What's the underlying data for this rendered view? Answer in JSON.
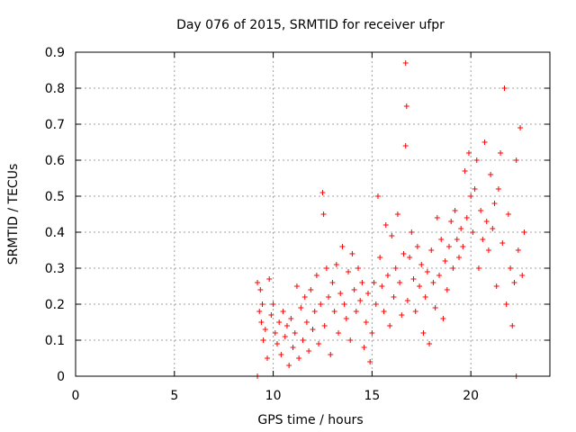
{
  "chart_data": {
    "type": "scatter",
    "title": "Day 076 of 2015, SRMTID for receiver ufpr",
    "xlabel": "GPS time / hours",
    "ylabel": "SRMTID / TECUs",
    "xlim": [
      0,
      24
    ],
    "ylim": [
      0,
      0.9
    ],
    "xticks": [
      0,
      5,
      10,
      15,
      20
    ],
    "yticks": [
      0,
      0.1,
      0.2,
      0.3,
      0.4,
      0.5,
      0.6,
      0.7,
      0.8,
      0.9
    ],
    "grid": true,
    "marker": "+",
    "point_color": "#ff0000",
    "series": [
      {
        "name": "SRMTID",
        "x": [
          9.2,
          9.3,
          9.35,
          9.4,
          9.45,
          9.5,
          9.6,
          9.7,
          9.8,
          9.9,
          10.0,
          10.1,
          10.2,
          10.3,
          10.4,
          10.5,
          10.6,
          10.7,
          10.8,
          10.9,
          11.0,
          11.1,
          11.2,
          11.3,
          11.4,
          11.5,
          11.6,
          11.7,
          11.8,
          11.9,
          12.0,
          12.1,
          12.2,
          12.3,
          12.4,
          12.5,
          12.55,
          12.6,
          12.7,
          12.8,
          12.9,
          13.0,
          13.1,
          13.2,
          13.3,
          13.4,
          13.5,
          13.6,
          13.7,
          13.8,
          13.9,
          14.0,
          14.1,
          14.2,
          14.3,
          14.4,
          14.5,
          14.6,
          14.7,
          14.8,
          14.9,
          15.0,
          15.1,
          15.2,
          15.3,
          15.4,
          15.5,
          15.6,
          15.7,
          15.8,
          15.9,
          16.0,
          16.1,
          16.2,
          16.3,
          16.4,
          16.5,
          16.6,
          16.7,
          16.7,
          16.75,
          16.8,
          16.9,
          17.0,
          17.1,
          17.2,
          17.3,
          17.4,
          17.5,
          17.6,
          17.7,
          17.8,
          17.9,
          18.0,
          18.1,
          18.2,
          18.3,
          18.4,
          18.5,
          18.6,
          18.7,
          18.8,
          18.9,
          19.0,
          19.1,
          19.2,
          19.3,
          19.4,
          19.5,
          19.6,
          19.7,
          19.8,
          19.9,
          20.0,
          20.1,
          20.2,
          20.3,
          20.4,
          20.5,
          20.6,
          20.7,
          20.8,
          20.9,
          21.0,
          21.1,
          21.2,
          21.3,
          21.4,
          21.5,
          21.6,
          21.7,
          21.8,
          21.9,
          22.0,
          22.1,
          22.2,
          22.3,
          22.4,
          22.5,
          22.6,
          22.7,
          9.2,
          22.3
        ],
        "y": [
          0.26,
          0.18,
          0.24,
          0.15,
          0.2,
          0.1,
          0.13,
          0.05,
          0.27,
          0.17,
          0.2,
          0.12,
          0.09,
          0.15,
          0.06,
          0.18,
          0.11,
          0.14,
          0.03,
          0.16,
          0.08,
          0.12,
          0.25,
          0.05,
          0.19,
          0.1,
          0.22,
          0.15,
          0.07,
          0.24,
          0.13,
          0.18,
          0.28,
          0.09,
          0.2,
          0.51,
          0.45,
          0.14,
          0.3,
          0.22,
          0.06,
          0.26,
          0.18,
          0.31,
          0.12,
          0.23,
          0.36,
          0.2,
          0.16,
          0.29,
          0.1,
          0.34,
          0.24,
          0.18,
          0.3,
          0.21,
          0.26,
          0.08,
          0.15,
          0.23,
          0.04,
          0.12,
          0.26,
          0.2,
          0.5,
          0.33,
          0.25,
          0.18,
          0.42,
          0.28,
          0.14,
          0.39,
          0.22,
          0.3,
          0.45,
          0.26,
          0.17,
          0.34,
          0.87,
          0.64,
          0.75,
          0.21,
          0.33,
          0.4,
          0.27,
          0.18,
          0.36,
          0.25,
          0.31,
          0.12,
          0.22,
          0.29,
          0.09,
          0.35,
          0.26,
          0.19,
          0.44,
          0.28,
          0.38,
          0.16,
          0.32,
          0.24,
          0.36,
          0.43,
          0.3,
          0.46,
          0.38,
          0.33,
          0.41,
          0.36,
          0.57,
          0.44,
          0.62,
          0.5,
          0.4,
          0.52,
          0.6,
          0.3,
          0.46,
          0.38,
          0.65,
          0.43,
          0.35,
          0.56,
          0.41,
          0.48,
          0.25,
          0.52,
          0.62,
          0.37,
          0.8,
          0.2,
          0.45,
          0.3,
          0.14,
          0.26,
          0.6,
          0.35,
          0.69,
          0.28,
          0.4,
          0.0,
          0.0
        ]
      }
    ]
  }
}
